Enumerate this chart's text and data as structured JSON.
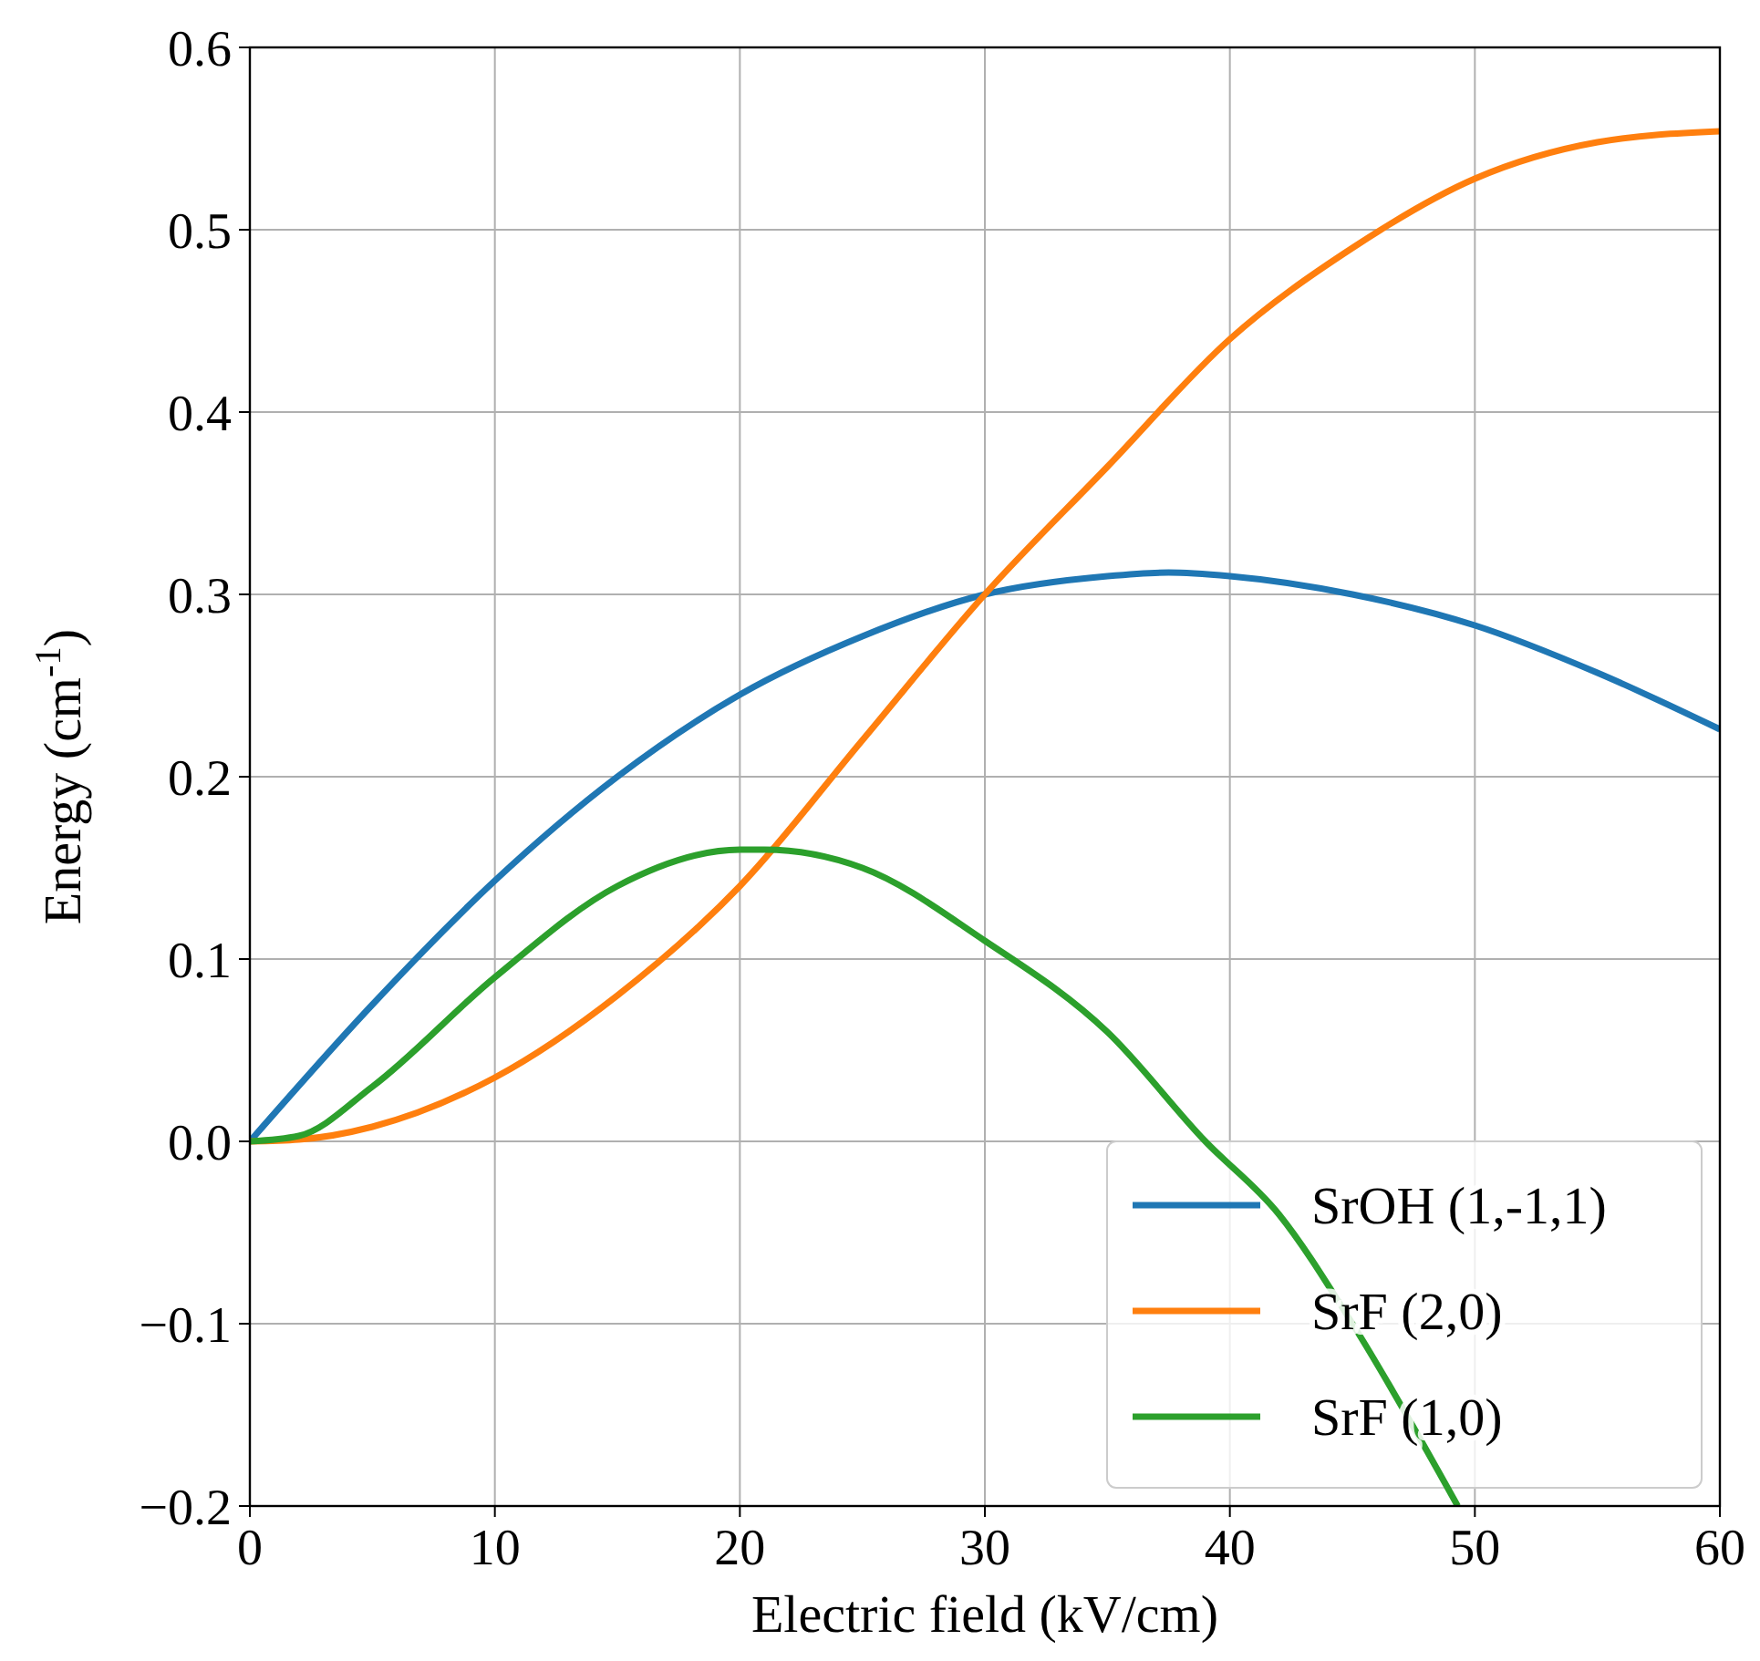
{
  "chart_data": {
    "type": "line",
    "xlabel": "Electric field (kV/cm)",
    "ylabel": "Energy (cm$^{-1}$)",
    "xlim": [
      0,
      60
    ],
    "xticks": [
      0,
      10,
      20,
      30,
      40,
      50,
      60
    ],
    "ylim": [
      -0.2,
      0.6
    ],
    "yticks": [
      {
        "value": -0.2,
        "label": "−0.2"
      },
      {
        "value": -0.1,
        "label": "−0.1"
      },
      {
        "value": 0,
        "label": "0.0"
      },
      0.1,
      0.2,
      0.3,
      0.4,
      0.5,
      0.6
    ],
    "grid": true,
    "legend": "bottom right",
    "line_style": "solid",
    "marker": "none",
    "series": [
      {
        "name": "SrOH (1,-1,1)",
        "color": "#1f77b4",
        "x": [
          0,
          5,
          10,
          15,
          20,
          25,
          30,
          35,
          37.5,
          40,
          45,
          50,
          55,
          60
        ],
        "values": [
          0,
          0.075,
          0.143,
          0.2,
          0.245,
          0.277,
          0.3,
          0.31,
          0.312,
          0.31,
          0.3,
          0.283,
          0.257,
          0.226
        ]
      },
      {
        "name": "SrF (2,0)",
        "color": "#ff7f0e",
        "x": [
          0,
          2,
          5,
          10,
          15,
          20,
          25,
          30,
          35,
          40,
          45,
          50,
          55,
          60
        ],
        "values": [
          0,
          0.001,
          0.008,
          0.035,
          0.08,
          0.14,
          0.22,
          0.3,
          0.37,
          0.44,
          0.49,
          0.528,
          0.548,
          0.554
        ]
      },
      {
        "name": "SrF (1,0)",
        "color": "#2ca02c",
        "x": [
          0,
          2,
          5,
          10,
          15,
          20,
          21,
          25,
          30,
          35,
          39,
          42,
          45,
          49.3
        ],
        "values": [
          0,
          0.003,
          0.03,
          0.09,
          0.14,
          0.16,
          0.16,
          0.15,
          0.11,
          0.06,
          0,
          -0.04,
          -0.1,
          -0.2
        ]
      }
    ]
  }
}
